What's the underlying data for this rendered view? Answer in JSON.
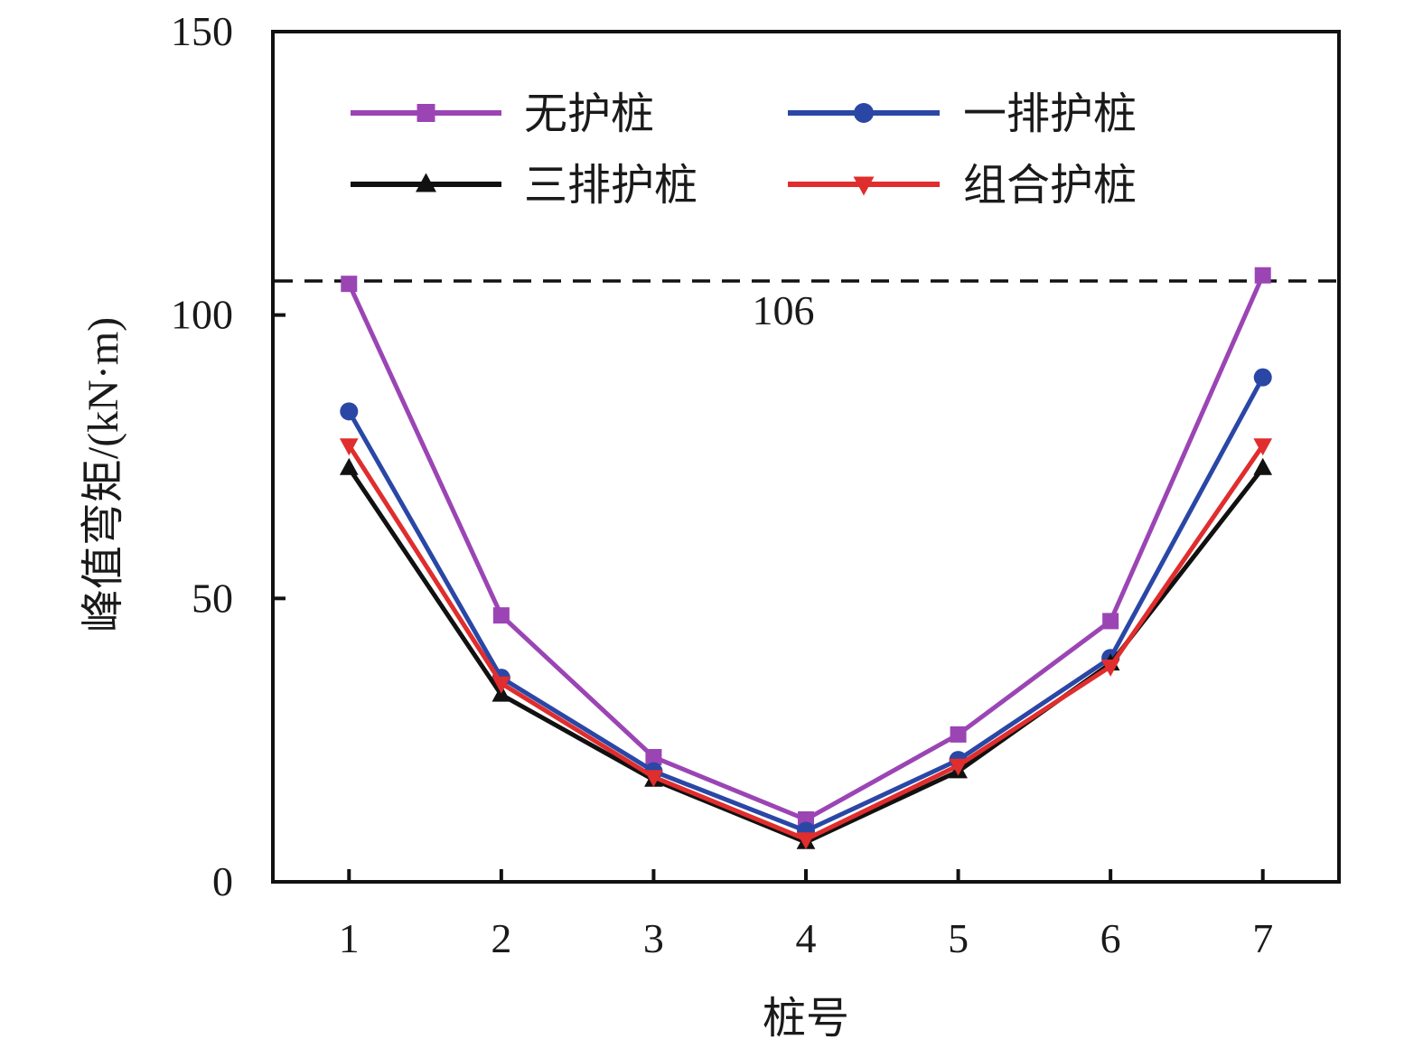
{
  "chart_data": {
    "type": "line",
    "x": [
      1,
      2,
      3,
      4,
      5,
      6,
      7
    ],
    "x_ticks": [
      "1",
      "2",
      "3",
      "4",
      "5",
      "6",
      "7"
    ],
    "xlim": [
      0.5,
      7.5
    ],
    "ylim": [
      0,
      150
    ],
    "y_ticks": [
      "0",
      "50",
      "100",
      "150"
    ],
    "xlabel": "桩号",
    "ylabel": "峰值弯矩/(kN·m)",
    "legend_position": "top",
    "series": [
      {
        "name": "无护桩",
        "color": "#9b45b5",
        "marker": "square",
        "values": [
          105.5,
          47,
          22,
          11,
          26,
          46,
          107
        ]
      },
      {
        "name": "一排护桩",
        "color": "#2a47a6",
        "marker": "circle",
        "values": [
          83,
          36,
          19.5,
          9,
          21.5,
          39.5,
          89
        ]
      },
      {
        "name": "三排护桩",
        "color": "#111111",
        "marker": "triangle-up",
        "values": [
          73,
          33,
          18,
          7,
          19.5,
          38.5,
          73
        ]
      },
      {
        "name": "组合护桩",
        "color": "#e02d2d",
        "marker": "triangle-down",
        "values": [
          77,
          35,
          18.5,
          7.5,
          20.5,
          38,
          77
        ]
      }
    ],
    "reference_line": {
      "value": 106,
      "label": "106",
      "style": "dashed",
      "color": "#111111"
    }
  }
}
